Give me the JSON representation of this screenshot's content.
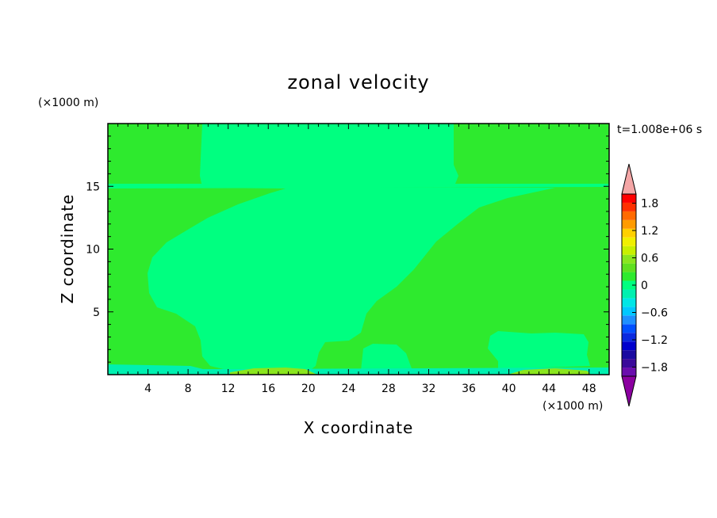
{
  "chart_data": {
    "type": "heatmap",
    "title": "zonal velocity",
    "xlabel": "X coordinate",
    "ylabel": "Z coordinate",
    "x_unit": "(×1000 m)",
    "y_unit": "(×1000 m)",
    "time_label": "t=1.008e+06 s",
    "xlim": [
      0,
      50
    ],
    "ylim": [
      0,
      20
    ],
    "x_ticks": [
      "4",
      "8",
      "12",
      "16",
      "20",
      "24",
      "28",
      "32",
      "36",
      "40",
      "44",
      "48"
    ],
    "y_ticks": [
      "5",
      "10",
      "15"
    ],
    "x_tick_values": [
      4,
      8,
      12,
      16,
      20,
      24,
      28,
      32,
      36,
      40,
      44,
      48
    ],
    "y_tick_values": [
      5,
      10,
      15
    ],
    "colorbar": {
      "labels": [
        "1.8",
        "1.2",
        "0.6",
        "0",
        "−0.6",
        "−1.2",
        "−1.8"
      ],
      "label_values": [
        1.8,
        1.2,
        0.6,
        0,
        -0.6,
        -1.2,
        -1.8
      ],
      "levels": [
        -2.0,
        -1.8,
        -1.6,
        -1.4,
        -1.2,
        -1.0,
        -0.8,
        -0.6,
        -0.4,
        -0.2,
        0.0,
        0.2,
        0.4,
        0.6,
        0.8,
        1.0,
        1.2,
        1.4,
        1.6,
        1.8,
        2.0
      ],
      "colors": [
        "#6a0dad",
        "#3a0a9a",
        "#1a0aa0",
        "#0000cd",
        "#0a2ae0",
        "#0050ff",
        "#1e90ff",
        "#00c8ff",
        "#00e6e6",
        "#00f0b0",
        "#00ff80",
        "#2eea2e",
        "#60e020",
        "#8ae61e",
        "#c8f000",
        "#f0f000",
        "#ffd000",
        "#ff9b00",
        "#ff6a00",
        "#ff3000",
        "#ff0000"
      ],
      "overflow_high_color": "#f4a6a6",
      "overflow_low_color": "#8b00a0"
    },
    "regions": [
      {
        "name": "positive-background",
        "value": 0.1,
        "color": "#2eea2e"
      },
      {
        "name": "upper-central-band",
        "value": -0.1,
        "color": "#00ff80"
      },
      {
        "name": "mid-diagonal-region",
        "value": -0.1,
        "color": "#00ff80"
      },
      {
        "name": "surface-layer-left",
        "value": -0.3,
        "color": "#00f0b0"
      },
      {
        "name": "surface-jet-center",
        "value": 0.5,
        "color": "#8ae61e"
      }
    ]
  }
}
